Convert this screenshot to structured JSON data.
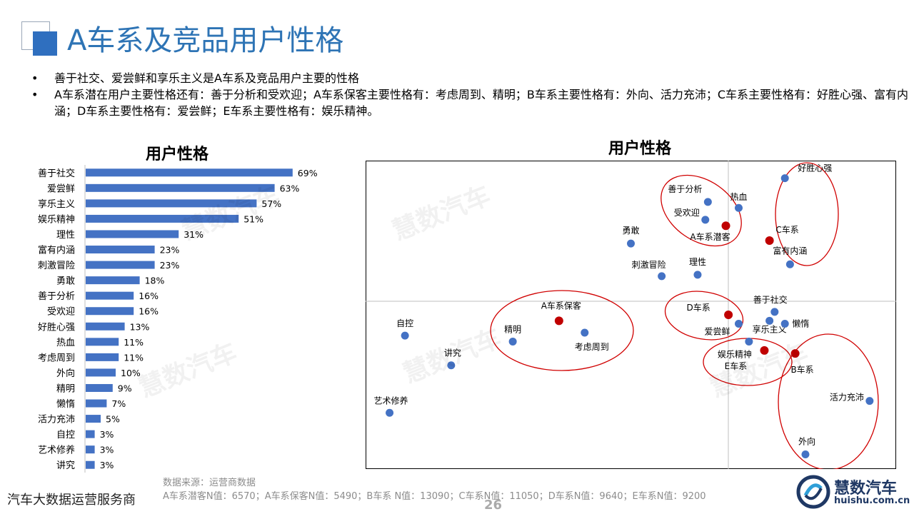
{
  "header": {
    "title": "A车系及竞品用户性格"
  },
  "bullets": [
    "善于社交、爱尝鲜和享乐主义是A车系及竞品用户主要的性格",
    "A车系潜在用户主要性格还有：善于分析和受欢迎；A车系保客主要性格有：考虑周到、精明；B车系主要性格有：外向、活力充沛；C车系主要性格有：好胜心强、富有内涵；D车系主要性格有：爱尝鲜；E车系主要性格有：娱乐精神。"
  ],
  "bullet_symbol": "•",
  "chart_data": [
    {
      "type": "bar",
      "orientation": "horizontal",
      "title": "用户性格",
      "categories": [
        "善于社交",
        "爱尝鲜",
        "享乐主义",
        "娱乐精神",
        "理性",
        "富有内涵",
        "刺激冒险",
        "勇敢",
        "善于分析",
        "受欢迎",
        "好胜心强",
        "热血",
        "考虑周到",
        "外向",
        "精明",
        "懒惰",
        "活力充沛",
        "自控",
        "艺术修养",
        "讲究"
      ],
      "values": [
        69,
        63,
        57,
        51,
        31,
        23,
        23,
        18,
        16,
        16,
        13,
        11,
        11,
        10,
        9,
        7,
        5,
        3,
        3,
        3
      ],
      "value_labels": [
        "69%",
        "63%",
        "57%",
        "51%",
        "31%",
        "23%",
        "23%",
        "18%",
        "16%",
        "16%",
        "13%",
        "11%",
        "11%",
        "10%",
        "9%",
        "7%",
        "5%",
        "3%",
        "3%",
        "3%"
      ],
      "bar_color": "#4472c4"
    },
    {
      "type": "scatter",
      "title": "用户性格",
      "xlim": [
        0,
        100
      ],
      "ylim": [
        0,
        100
      ],
      "quadrant_lines": true,
      "points": [
        {
          "label": "好胜心强",
          "x": 80,
          "y": 96
        },
        {
          "label": "热血",
          "x": 71,
          "y": 86
        },
        {
          "label": "善于分析",
          "x": 65,
          "y": 88
        },
        {
          "label": "受欢迎",
          "x": 64.5,
          "y": 82
        },
        {
          "label": "勇敢",
          "x": 50,
          "y": 74
        },
        {
          "label": "富有内涵",
          "x": 81,
          "y": 67
        },
        {
          "label": "刺激冒险",
          "x": 56,
          "y": 63
        },
        {
          "label": "理性",
          "x": 63,
          "y": 63.5
        },
        {
          "label": "善于社交",
          "x": 78,
          "y": 51
        },
        {
          "label": "享乐主义",
          "x": 77,
          "y": 48
        },
        {
          "label": "懒惰",
          "x": 80,
          "y": 47
        },
        {
          "label": "爱尝鲜",
          "x": 71,
          "y": 47
        },
        {
          "label": "娱乐精神",
          "x": 73,
          "y": 41
        },
        {
          "label": "自控",
          "x": 6,
          "y": 43
        },
        {
          "label": "精明",
          "x": 27,
          "y": 41
        },
        {
          "label": "考虑周到",
          "x": 41,
          "y": 44
        },
        {
          "label": "讲究",
          "x": 15,
          "y": 33
        },
        {
          "label": "艺术修养",
          "x": 3,
          "y": 17
        },
        {
          "label": "活力充沛",
          "x": 96.5,
          "y": 21
        },
        {
          "label": "外向",
          "x": 84,
          "y": 3
        }
      ],
      "brand_points": [
        {
          "label": "A车系潜客",
          "x": 68.5,
          "y": 80
        },
        {
          "label": "C车系",
          "x": 77,
          "y": 75
        },
        {
          "label": "A车系保客",
          "x": 36,
          "y": 48
        },
        {
          "label": "D车系",
          "x": 69,
          "y": 50
        },
        {
          "label": "E车系",
          "x": 76,
          "y": 38
        },
        {
          "label": "B车系",
          "x": 82,
          "y": 37
        }
      ],
      "point_color": "#4472c4",
      "brand_color": "#c00000",
      "ellipse_color": "#d00000"
    }
  ],
  "watermark": "慧数汽车",
  "source": {
    "line1": "数据来源：运营商数据",
    "line2": "A车系潜客N值：6570；A车系保客N值：5490；B车系 N值：13090；C车系N值：11050；D车系N值：9640；E车系N值：9200"
  },
  "footer": {
    "left": "汽车大数据运营服务商",
    "page": "26"
  },
  "brand": {
    "name": "慧数汽车",
    "url": "huishu.com.cn"
  }
}
